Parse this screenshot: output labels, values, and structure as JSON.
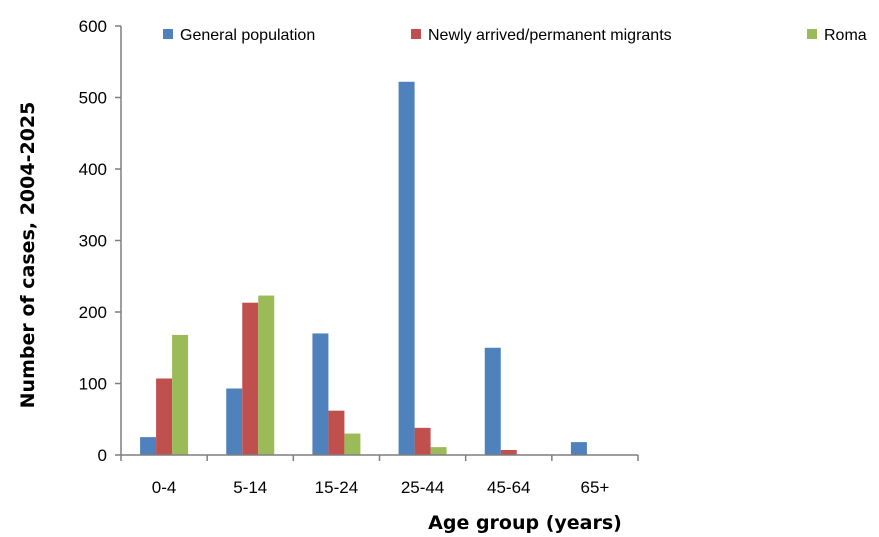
{
  "chart_data": {
    "type": "bar",
    "title": "",
    "xlabel": "Age group (years)",
    "ylabel": "Number of cases, 2004-2025",
    "categories": [
      "0-4",
      "5-14",
      "15-24",
      "25-44",
      "45-64",
      "65+"
    ],
    "ylim": [
      0,
      600
    ],
    "yticks": [
      0,
      100,
      200,
      300,
      400,
      500,
      600
    ],
    "grid": false,
    "legend_position": "top",
    "series": [
      {
        "name": "General population",
        "color": "#4f81bd",
        "values": [
          25,
          93,
          170,
          522,
          150,
          18
        ]
      },
      {
        "name": "Newly arrived/permanent migrants",
        "color": "#c0504d",
        "values": [
          107,
          213,
          62,
          38,
          7,
          0
        ]
      },
      {
        "name": "Roma",
        "color": "#9bbb59",
        "values": [
          168,
          223,
          30,
          11,
          0,
          0
        ]
      }
    ]
  }
}
